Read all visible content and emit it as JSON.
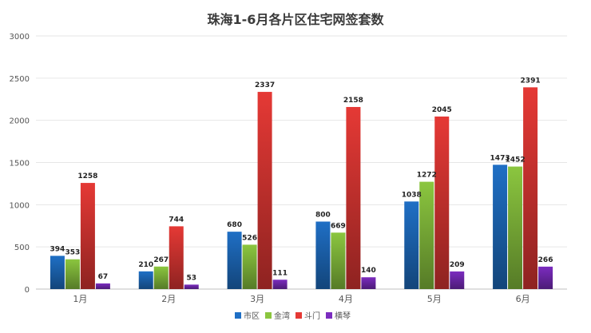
{
  "chart_data": {
    "type": "bar",
    "title": "珠海1-6月各片区住宅网签套数",
    "categories": [
      "1月",
      "2月",
      "3月",
      "4月",
      "5月",
      "6月"
    ],
    "series": [
      {
        "name": "市区",
        "values": [
          394,
          210,
          680,
          800,
          1038,
          1473
        ]
      },
      {
        "name": "金湾",
        "values": [
          353,
          267,
          526,
          669,
          1272,
          1452
        ]
      },
      {
        "name": "斗门",
        "values": [
          1258,
          744,
          2337,
          2158,
          2045,
          2391
        ]
      },
      {
        "name": "横琴",
        "values": [
          67,
          53,
          111,
          140,
          209,
          266
        ]
      }
    ],
    "ylim": [
      0,
      3000
    ],
    "yticks": [
      "0",
      "500",
      "1000",
      "1500",
      "2000",
      "2500",
      "3000"
    ],
    "grid": true,
    "legend_position": "bottom",
    "colors": {
      "series": [
        "#1f6fc5",
        "#8bc63f",
        "#e53935",
        "#7b2cbf"
      ],
      "grid": "#e6e6e6",
      "axis": "#bfbfbf",
      "title": "#3a3a3a",
      "label": "#222222",
      "tick": "#555555"
    }
  }
}
